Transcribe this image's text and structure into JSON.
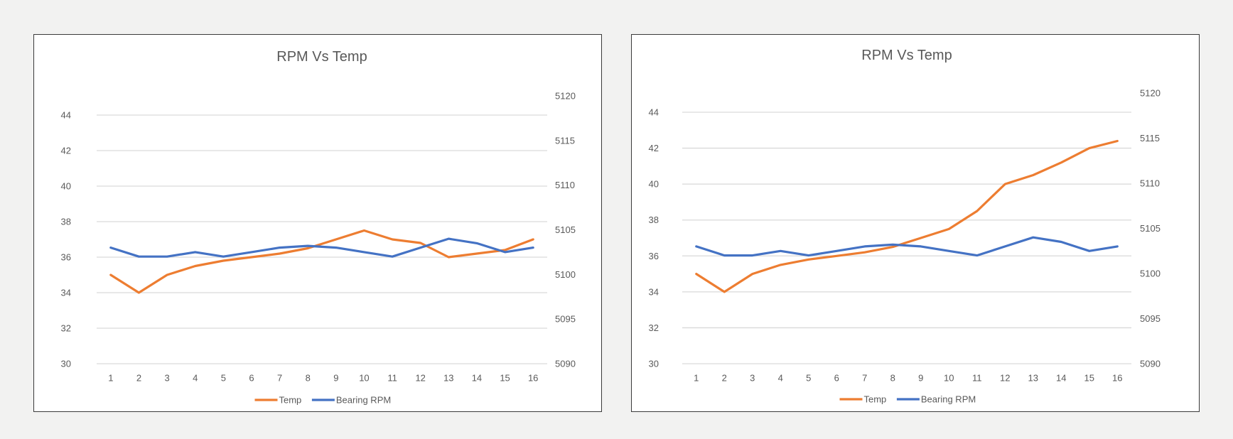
{
  "colors": {
    "temp": "#ed7d31",
    "rpm": "#4472c4"
  },
  "chart_data": [
    {
      "type": "line",
      "title": "RPM Vs Temp",
      "categories": [
        "1",
        "2",
        "3",
        "4",
        "5",
        "6",
        "7",
        "8",
        "9",
        "10",
        "11",
        "12",
        "13",
        "14",
        "15",
        "16"
      ],
      "y_left": {
        "ylim": [
          30,
          44
        ],
        "ticks": [
          "30",
          "32",
          "34",
          "36",
          "38",
          "40",
          "42",
          "44"
        ]
      },
      "y_right": {
        "ylim": [
          5090,
          5120
        ],
        "ticks": [
          "5090",
          "5095",
          "5100",
          "5105",
          "5110",
          "5115",
          "5120"
        ]
      },
      "series": [
        {
          "name": "Temp",
          "axis": "left",
          "color": "#ed7d31",
          "values": [
            35,
            34,
            35,
            35.5,
            35.8,
            36,
            36.2,
            36.5,
            37,
            37.5,
            37,
            36.8,
            36,
            36.2,
            36.4,
            37
          ]
        },
        {
          "name": "Bearing RPM",
          "axis": "right",
          "color": "#4472c4",
          "values": [
            5103,
            5102,
            5102,
            5102.5,
            5102,
            5102.5,
            5103,
            5103.2,
            5103,
            5102.5,
            5102,
            5103,
            5104,
            5103.5,
            5102.5,
            5103
          ]
        }
      ],
      "legend": [
        "Temp",
        "Bearing RPM"
      ],
      "legend_position": "bottom",
      "grid": true
    },
    {
      "type": "line",
      "title": "RPM Vs Temp",
      "categories": [
        "1",
        "2",
        "3",
        "4",
        "5",
        "6",
        "7",
        "8",
        "9",
        "10",
        "11",
        "12",
        "13",
        "14",
        "15",
        "16"
      ],
      "y_left": {
        "ylim": [
          30,
          44
        ],
        "ticks": [
          "30",
          "32",
          "34",
          "36",
          "38",
          "40",
          "42",
          "44"
        ]
      },
      "y_right": {
        "ylim": [
          5090,
          5120
        ],
        "ticks": [
          "5090",
          "5095",
          "5100",
          "5105",
          "5110",
          "5115",
          "5120"
        ]
      },
      "series": [
        {
          "name": "Temp",
          "axis": "left",
          "color": "#ed7d31",
          "values": [
            35,
            34,
            35,
            35.5,
            35.8,
            36,
            36.2,
            36.5,
            37,
            37.5,
            38.5,
            40,
            40.5,
            41.2,
            42,
            42.4
          ]
        },
        {
          "name": "Bearing RPM",
          "axis": "right",
          "color": "#4472c4",
          "values": [
            5103,
            5102,
            5102,
            5102.5,
            5102,
            5102.5,
            5103,
            5103.2,
            5103,
            5102.5,
            5102,
            5103,
            5104,
            5103.5,
            5102.5,
            5103
          ]
        }
      ],
      "legend": [
        "Temp",
        "Bearing RPM"
      ],
      "legend_position": "bottom",
      "grid": true
    }
  ]
}
